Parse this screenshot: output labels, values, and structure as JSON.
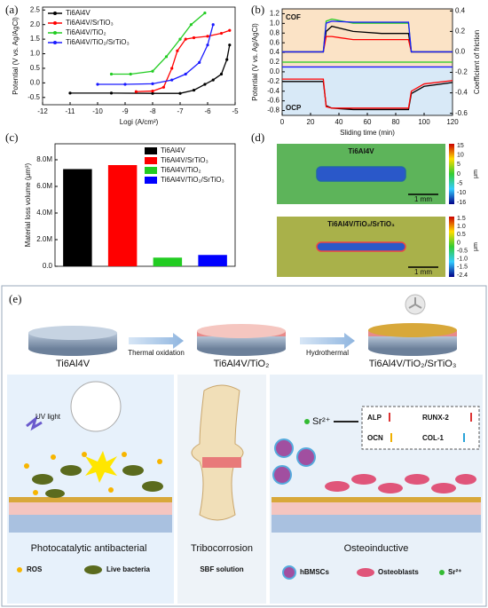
{
  "panel_labels": [
    "(a)",
    "(b)",
    "(c)",
    "(d)",
    "(e)"
  ],
  "chart_data": [
    {
      "type": "line",
      "xlabel": "Logi (A/cm²)",
      "ylabel": "Potential (V vs. Ag/AgCl)",
      "xlim": [
        -12,
        -5
      ],
      "xticks": [
        -12,
        -11,
        -10,
        -9,
        -8,
        -7,
        -6,
        -5
      ],
      "ylim": [
        -0.75,
        2.6
      ],
      "yticks": [
        -0.5,
        {
          "value": 0,
          "label": "0.0"
        },
        0.5,
        {
          "value": 1,
          "label": "1.0"
        },
        1.5,
        {
          "value": 2,
          "label": "2.0"
        },
        2.5
      ],
      "series": [
        {
          "name": "Ti6Al4V",
          "color": "#000000",
          "x": [
            -11,
            -9.5,
            -8,
            -7,
            -6.5,
            -6.1,
            -5.8,
            -5.5,
            -5.3,
            -5.2
          ],
          "values": [
            -0.35,
            -0.35,
            -0.36,
            -0.36,
            -0.25,
            -0.05,
            0.1,
            0.3,
            0.8,
            1.3
          ]
        },
        {
          "name": "Ti6Al4V/SrTiO₃",
          "color": "#ff0000",
          "x": [
            -8.6,
            -8,
            -7.6,
            -7.3,
            -7.1,
            -6.8,
            -6.5,
            -6,
            -5.5,
            -5.2
          ],
          "values": [
            -0.3,
            -0.28,
            -0.15,
            0.5,
            1.1,
            1.5,
            1.55,
            1.6,
            1.7,
            1.8
          ]
        },
        {
          "name": "Ti6Al4V/TiO₂",
          "color": "#22cc22",
          "x": [
            -9.5,
            -8.8,
            -8,
            -7.5,
            -7,
            -6.6,
            -6.1
          ],
          "values": [
            0.3,
            0.3,
            0.4,
            0.9,
            1.5,
            2.0,
            2.4
          ]
        },
        {
          "name": "Ti6Al4V/TiO₂/SrTiO₃",
          "color": "#1a1aff",
          "x": [
            -10,
            -9,
            -8,
            -7.3,
            -6.8,
            -6.3,
            -6,
            -5.8
          ],
          "values": [
            -0.05,
            -0.05,
            -0.03,
            0.1,
            0.3,
            0.7,
            1.3,
            2.0
          ]
        }
      ]
    },
    {
      "type": "line",
      "xlabel": "Sliding time (min)",
      "ylabel": "Potential (V vs. Ag/AgCl)",
      "y2label": "Coefficient of friction",
      "annotations": [
        "COF",
        "OCP"
      ],
      "xlim": [
        0,
        120
      ],
      "xticks": [
        0,
        20,
        40,
        60,
        80,
        100,
        120
      ],
      "ylim": [
        -0.9,
        1.3
      ],
      "yticks": [
        -0.8,
        -0.6,
        -0.4,
        -0.2,
        {
          "value": 0,
          "label": "0.0"
        },
        0.2,
        0.4,
        0.6,
        0.8,
        {
          "value": 1,
          "label": "1.0"
        },
        1.2
      ],
      "y2lim": [
        -0.62,
        0.42
      ],
      "y2ticks": [
        -0.6,
        -0.4,
        -0.2,
        {
          "value": 0,
          "label": "0.0"
        },
        0.2,
        0.4
      ],
      "x": [
        0,
        29,
        31,
        35,
        50,
        70,
        89,
        91,
        100,
        120
      ],
      "series": [
        {
          "color": "#000000",
          "axis": "y2",
          "values": [
            0,
            0,
            0.2,
            0.25,
            0.2,
            0.18,
            0.18,
            0,
            0,
            0
          ]
        },
        {
          "color": "#ff0000",
          "axis": "y2",
          "values": [
            0,
            0,
            0.15,
            0.15,
            0.12,
            0.12,
            0.12,
            0,
            0,
            0
          ]
        },
        {
          "color": "#22cc22",
          "axis": "y2",
          "values": [
            0,
            0,
            0.3,
            0.32,
            0.28,
            0.28,
            0.28,
            0,
            0,
            0
          ]
        },
        {
          "color": "#1a1aff",
          "axis": "y2",
          "values": [
            0,
            0,
            0.28,
            0.3,
            0.29,
            0.29,
            0.29,
            0,
            0,
            0
          ]
        },
        {
          "color": "#22cc22",
          "values": [
            0.2,
            0.2,
            0.2,
            0.2,
            0.2,
            0.2,
            0.2,
            0.2,
            0.2,
            0.2
          ]
        },
        {
          "color": "#1a1aff",
          "values": [
            0.1,
            0.1,
            0.1,
            0.1,
            0.1,
            0.1,
            0.1,
            0.1,
            0.1,
            0.1
          ]
        },
        {
          "color": "#000000",
          "values": [
            -0.2,
            -0.2,
            -0.7,
            -0.75,
            -0.78,
            -0.78,
            -0.78,
            -0.45,
            -0.3,
            -0.22
          ]
        },
        {
          "color": "#ff0000",
          "values": [
            -0.15,
            -0.15,
            -0.72,
            -0.75,
            -0.75,
            -0.75,
            -0.75,
            -0.4,
            -0.25,
            -0.18
          ]
        }
      ]
    },
    {
      "type": "bar",
      "ylabel": "Material loss volume (μm³)",
      "categories": [
        "Ti6Al4V",
        "Ti6Al4V/SrTiO₃",
        "Ti6Al4V/TiO₂",
        "Ti6Al4V/TiO₂/SrTiO₃"
      ],
      "values": [
        7300000,
        7600000,
        650000,
        850000
      ],
      "colors": [
        "#000000",
        "#ff0000",
        "#22cc22",
        "#0000ff"
      ],
      "ylim": [
        0,
        9200000
      ],
      "yticks": [
        {
          "value": 0,
          "label": "0.0"
        },
        {
          "value": 2000000,
          "label": "2.0M"
        },
        {
          "value": 4000000,
          "label": "4.0M"
        },
        {
          "value": 6000000,
          "label": "6.0M"
        },
        {
          "value": 8000000,
          "label": "8.0M"
        }
      ]
    }
  ],
  "panel_d": {
    "unit": "μm",
    "maps": [
      {
        "label": "Ti6Al4V",
        "scale_bar": "1 mm",
        "colorbar_ticks": [
          "15",
          "10",
          "5",
          "0",
          "-5",
          "-10",
          "-16"
        ]
      },
      {
        "label": "Ti6Al4V/TiO₂/SrTiO₃",
        "scale_bar": "1 mm",
        "colorbar_ticks": [
          "1.5",
          "1.0",
          "0.5",
          "0",
          "-0.5",
          "-1.0",
          "-1.5",
          "-2.4"
        ]
      }
    ]
  },
  "panel_e": {
    "steps": [
      "Ti6Al4V",
      "Ti6Al4V/TiO₂",
      "Ti6Al4V/TiO₂/SrTiO₃"
    ],
    "processes": [
      "Thermal oxidation",
      "Hydrothermal"
    ],
    "antibacterial": {
      "title": "Photocatalytic antibacterial",
      "light": "UV light",
      "legend": [
        "ROS",
        "Live bacteria"
      ]
    },
    "tribocorrosion": {
      "title": "Tribocorrosion",
      "legend": "SBF solution"
    },
    "osteo": {
      "title": "Osteoinductive",
      "ion": "Sr²⁺",
      "markers": [
        "ALP",
        "RUNX-2",
        "OCN",
        "COL-1"
      ],
      "legend": [
        "hBMSCs",
        "Osteoblasts",
        "Sr²⁺"
      ]
    }
  }
}
